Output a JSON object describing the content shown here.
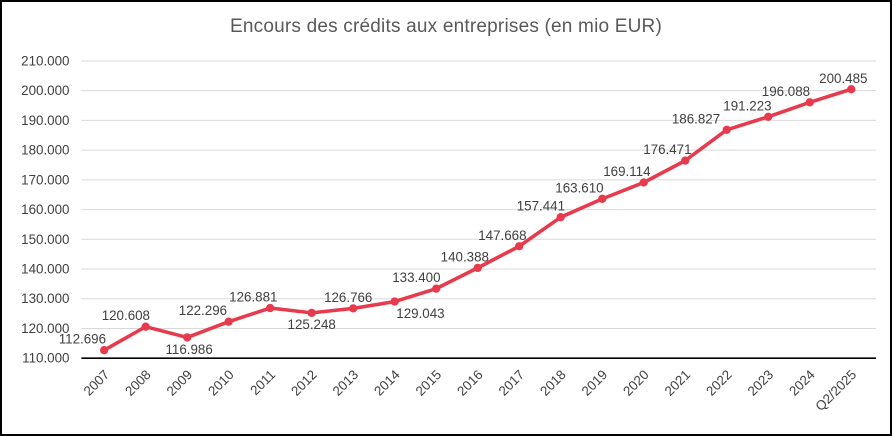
{
  "chart_data": {
    "type": "line",
    "title": "Encours des crédits aux entreprises (en mio EUR)",
    "xlabel": "",
    "ylabel": "",
    "categories": [
      "2007",
      "2008",
      "2009",
      "2010",
      "2011",
      "2012",
      "2013",
      "2014",
      "2015",
      "2016",
      "2017",
      "2018",
      "2019",
      "2020",
      "2021",
      "2022",
      "2023",
      "2024",
      "Q2/2025"
    ],
    "values": [
      112696,
      120608,
      116986,
      122296,
      126881,
      125248,
      126766,
      129043,
      133400,
      140388,
      147668,
      157441,
      163610,
      169114,
      176471,
      186827,
      191223,
      196088,
      200485
    ],
    "value_labels": [
      "112.696",
      "120.608",
      "116.986",
      "122.296",
      "126.881",
      "125.248",
      "126.766",
      "129.043",
      "133.400",
      "140.388",
      "147.668",
      "157.441",
      "163.610",
      "169.114",
      "176.471",
      "186.827",
      "191.223",
      "196.088",
      "200.485"
    ],
    "label_positions": [
      "above",
      "above",
      "below",
      "above",
      "above",
      "below",
      "above",
      "below",
      "above",
      "above",
      "above",
      "above",
      "above",
      "above",
      "above",
      "above",
      "above",
      "above",
      "above"
    ],
    "label_dx": [
      -22,
      -20,
      2,
      -26,
      -17,
      0,
      -5,
      26,
      -20,
      -13,
      -17,
      -20,
      -23,
      -17,
      -18,
      -31,
      -21,
      -24,
      -8
    ],
    "ylim": [
      110000,
      210000
    ],
    "ytick_step": 10000,
    "ytick_labels": [
      "110.000",
      "120.000",
      "130.000",
      "140.000",
      "150.000",
      "160.000",
      "170.000",
      "180.000",
      "190.000",
      "200.000",
      "210.000"
    ],
    "grid": true,
    "legend": false,
    "colors": {
      "line": "#e73b4d",
      "marker": "#e73b4d",
      "gridline": "#d9d9d9",
      "axis_line": "#000000",
      "tick_text": "#404040",
      "data_label_text": "#404040",
      "title_text": "#595959",
      "frame_border": "#000000",
      "background": "#ffffff"
    }
  }
}
